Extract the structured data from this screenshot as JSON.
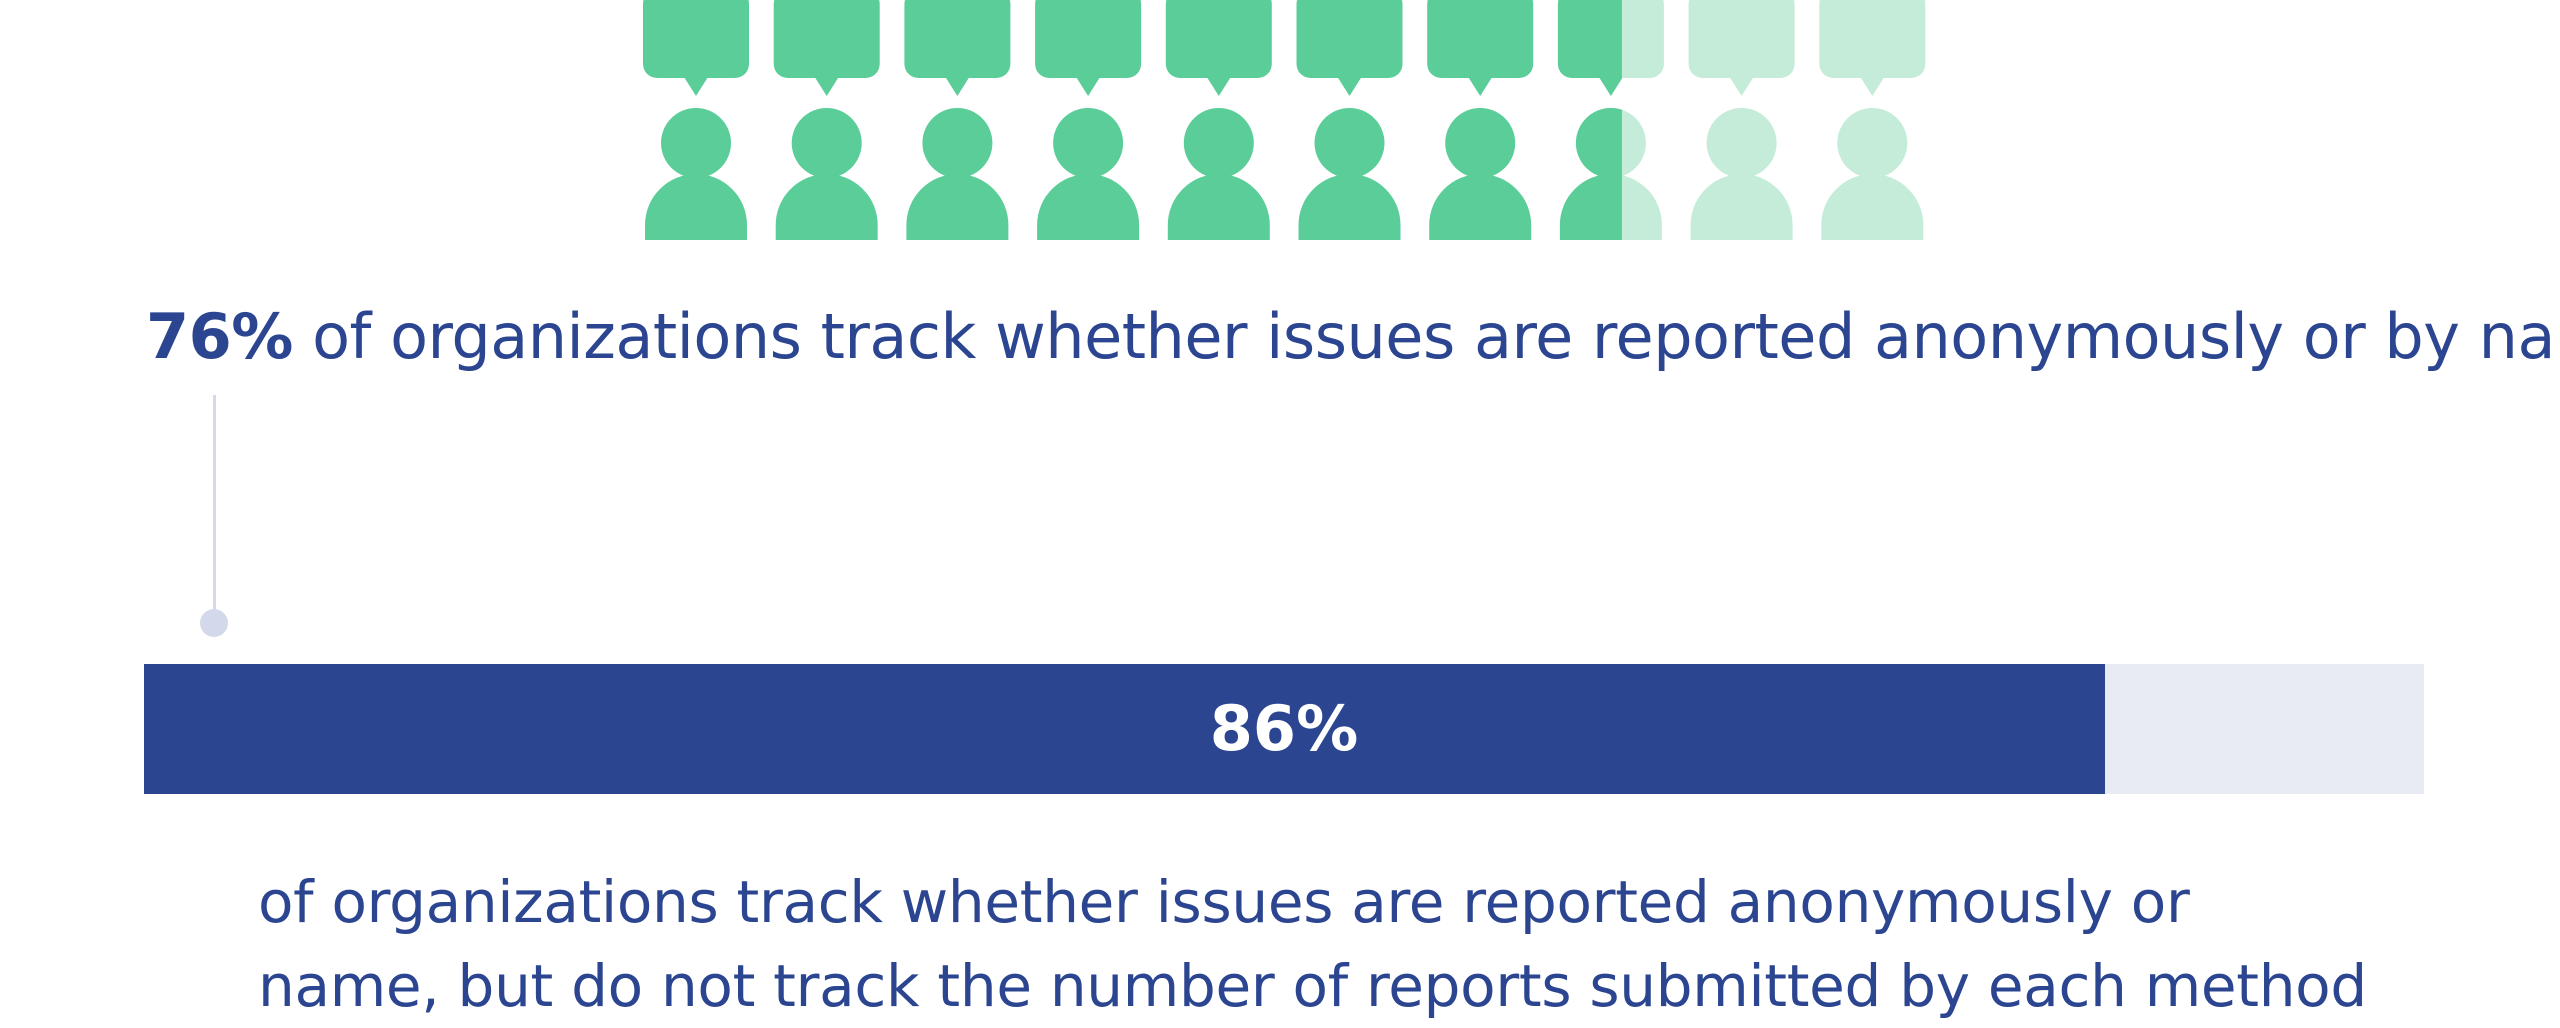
{
  "chart_data": [
    {
      "type": "pictograph",
      "icon": "person-speech-bubble-icon",
      "total_icons": 10,
      "value_percent": 76,
      "colors": {
        "filled": "#5acd99",
        "empty": "#c4ecd9"
      },
      "label": {
        "value_text": "76%",
        "text": " of organizations track whether issues are reported anonymously or by name"
      }
    },
    {
      "type": "bar",
      "value_percent": 86,
      "colors": {
        "fill": "#2b4590",
        "track": "#e8ebf4",
        "label": "#ffffff"
      },
      "value_text": "86%",
      "caption": {
        "line1": "of organizations track whether issues are reported anonymously or",
        "line2": "name, but do not track the number of reports submitted by each method"
      }
    }
  ]
}
